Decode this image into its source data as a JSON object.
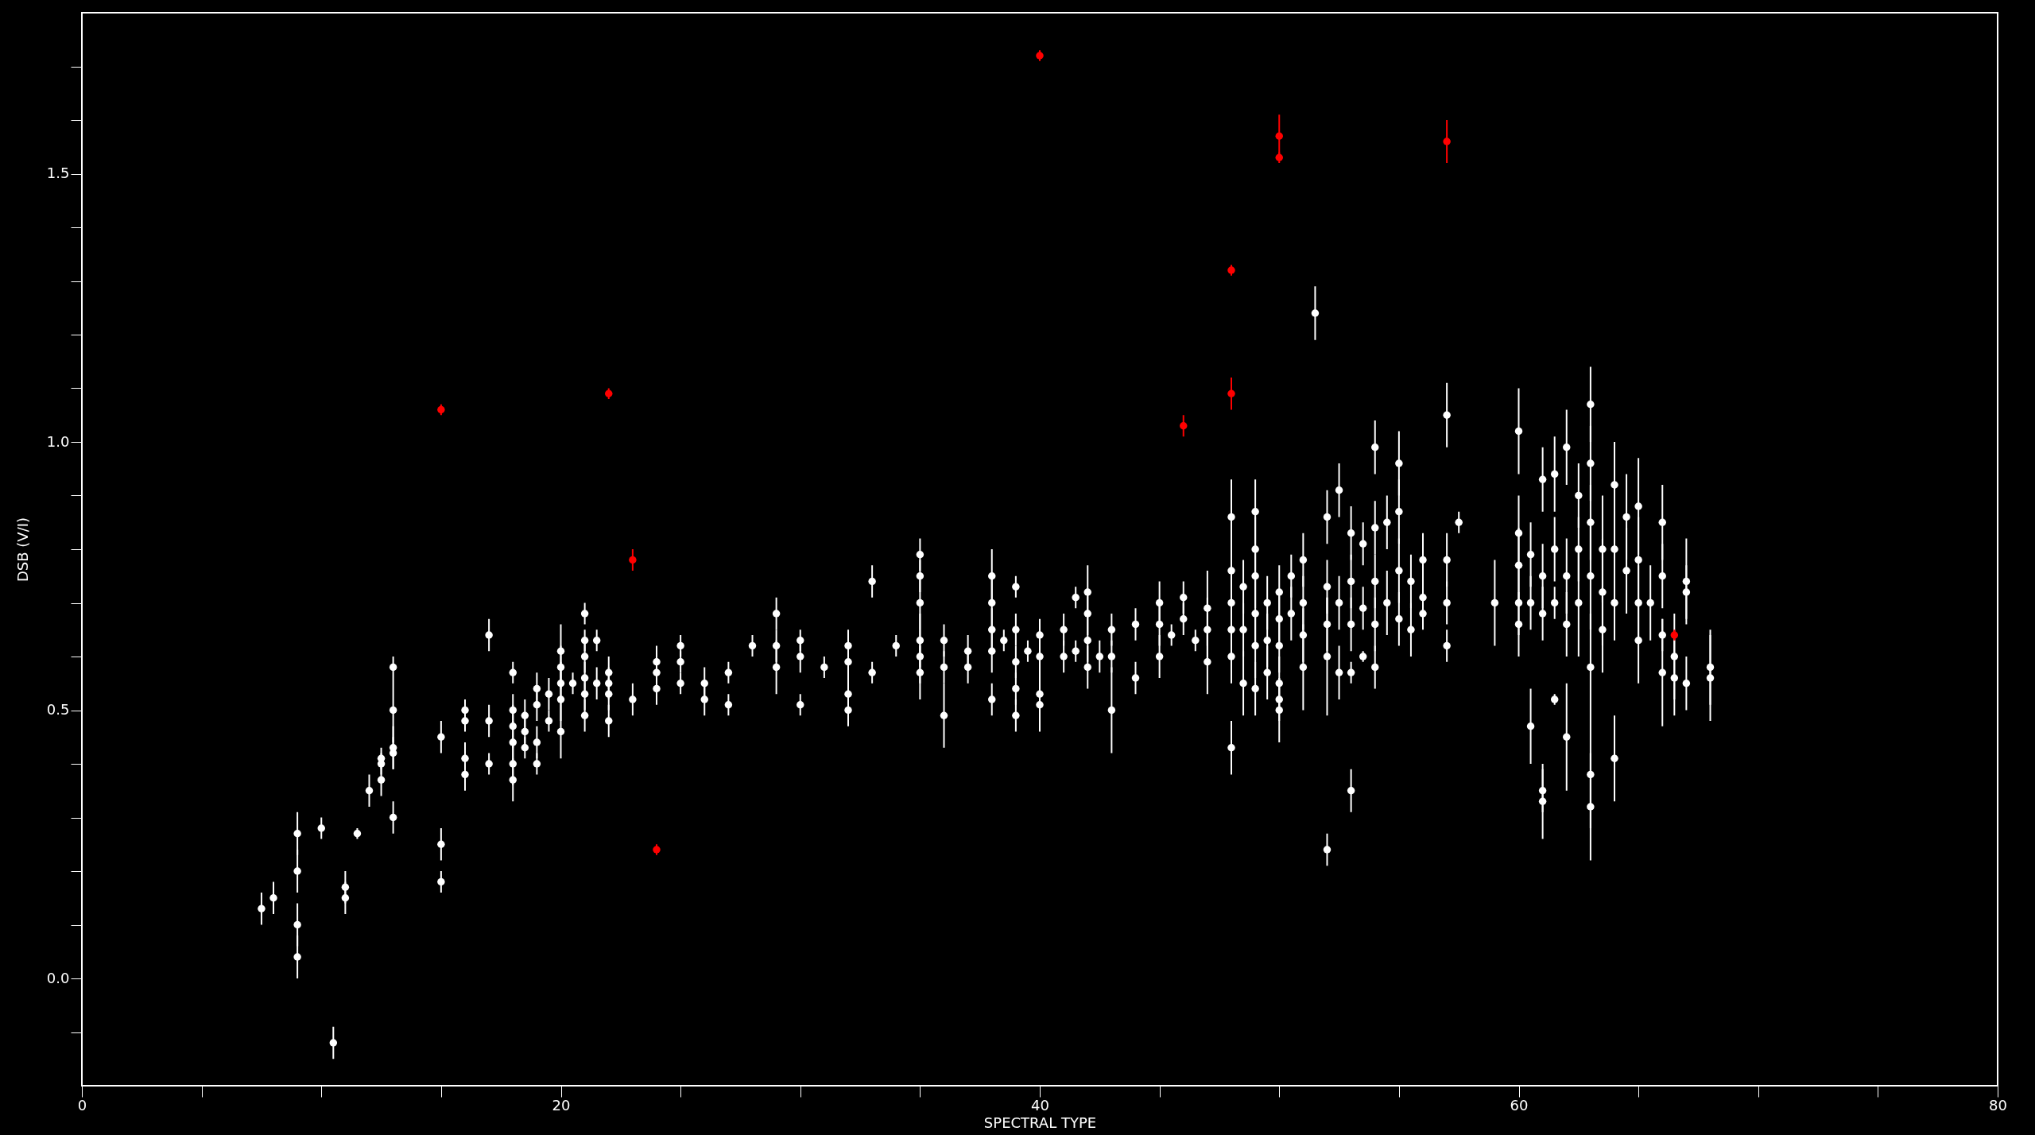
{
  "chart_data": {
    "type": "scatter",
    "xlabel": "SPECTRAL TYPE",
    "ylabel": "DSB (V/I)",
    "xlim": [
      0,
      80
    ],
    "ylim": [
      -0.2,
      1.8
    ],
    "xticks": [
      0,
      {
        "value": 5,
        "label": null
      },
      {
        "value": 10,
        "label": null
      },
      {
        "value": 15,
        "label": null
      },
      20,
      {
        "value": 25,
        "label": null
      },
      {
        "value": 30,
        "label": null
      },
      {
        "value": 35,
        "label": null
      },
      40,
      {
        "value": 45,
        "label": null
      },
      {
        "value": 50,
        "label": null
      },
      {
        "value": 55,
        "label": null
      },
      60,
      {
        "value": 65,
        "label": null
      },
      {
        "value": 70,
        "label": null
      },
      {
        "value": 75,
        "label": null
      },
      80
    ],
    "yticks": [
      {
        "value": -0.1,
        "label": null
      },
      {
        "value": 0,
        "label": "0.0"
      },
      {
        "value": 0.1,
        "label": null
      },
      {
        "value": 0.2,
        "label": null
      },
      {
        "value": 0.3,
        "label": null
      },
      {
        "value": 0.4,
        "label": null
      },
      {
        "value": 0.5,
        "label": "0.5"
      },
      {
        "value": 0.6,
        "label": null
      },
      {
        "value": 0.7,
        "label": null
      },
      {
        "value": 0.8,
        "label": null
      },
      {
        "value": 0.9,
        "label": null
      },
      {
        "value": 1,
        "label": "1.0"
      },
      {
        "value": 1.1,
        "label": null
      },
      {
        "value": 1.2,
        "label": null
      },
      {
        "value": 1.3,
        "label": null
      },
      {
        "value": 1.4,
        "label": null
      },
      {
        "value": 1.5,
        "label": "1.5"
      },
      {
        "value": 1.6,
        "label": null
      },
      {
        "value": 1.7,
        "label": null
      }
    ],
    "grid": false,
    "marker": "circle",
    "series": [
      {
        "color": "#ffffff",
        "x": [
          7.5,
          8,
          9,
          9,
          9,
          9,
          10,
          10.5,
          11,
          11,
          11.5,
          12,
          12.5,
          12.5,
          12.5,
          13,
          13,
          13,
          13,
          13,
          15,
          15,
          15,
          16,
          16,
          16,
          16,
          17,
          17,
          17,
          18,
          18,
          18,
          18,
          18,
          18,
          18.5,
          18.5,
          18.5,
          19,
          19,
          19,
          19,
          19.5,
          19.5,
          20,
          20,
          20,
          20,
          20,
          20.5,
          21,
          21,
          21,
          21,
          21,
          21,
          21.5,
          21.5,
          22,
          22,
          22,
          22,
          23,
          24,
          24,
          24,
          25,
          25,
          25,
          26,
          26,
          27,
          27,
          28,
          29,
          29,
          29,
          30,
          30,
          30,
          31,
          32,
          32,
          32,
          32,
          33,
          33,
          34,
          35,
          35,
          35,
          35,
          35,
          35,
          36,
          36,
          36,
          37,
          37,
          38,
          38,
          38,
          38,
          38,
          38.5,
          39,
          39,
          39,
          39,
          39,
          39.5,
          40,
          40,
          40,
          40,
          41,
          41,
          41.5,
          41.5,
          42,
          42,
          42,
          42,
          42.5,
          43,
          43,
          43,
          44,
          44,
          45,
          45,
          45,
          45.5,
          46,
          46,
          46.5,
          47,
          47,
          47,
          48,
          48,
          48,
          48,
          48,
          48,
          48.5,
          48.5,
          48.5,
          49,
          49,
          49,
          49,
          49,
          49,
          49.5,
          49.5,
          49.5,
          50,
          50,
          50,
          50,
          50,
          50,
          50.5,
          50.5,
          51,
          51,
          51,
          51,
          51.5,
          52,
          52,
          52,
          52,
          52,
          52.5,
          52.5,
          52.5,
          53,
          53,
          53,
          53,
          53,
          53.5,
          53.5,
          53.5,
          54,
          54,
          54,
          54,
          54,
          54.5,
          54.5,
          55,
          55,
          55,
          55,
          55.5,
          55.5,
          56,
          56,
          56,
          57,
          57,
          57,
          57,
          57.5,
          59,
          60,
          60,
          60,
          60,
          60,
          60.5,
          60.5,
          60.5,
          61,
          61,
          61,
          61,
          61,
          61.5,
          61.5,
          61.5,
          61.5,
          62,
          62,
          62,
          62,
          62.5,
          62.5,
          62.5,
          63,
          63,
          63,
          63,
          63,
          63,
          63,
          63.5,
          63.5,
          63.5,
          64,
          64,
          64,
          64,
          64.5,
          64.5,
          65,
          65,
          65,
          65,
          65.5,
          66,
          66,
          66,
          66,
          66.5,
          66.5,
          67,
          67,
          67,
          68,
          68
        ],
        "values": [
          0.13,
          0.15,
          0.27,
          0.2,
          0.1,
          0.04,
          0.28,
          -0.12,
          0.17,
          0.15,
          0.27,
          0.35,
          0.41,
          0.4,
          0.37,
          0.58,
          0.5,
          0.43,
          0.42,
          0.3,
          0.45,
          0.25,
          0.18,
          0.5,
          0.48,
          0.41,
          0.38,
          0.64,
          0.48,
          0.4,
          0.57,
          0.5,
          0.47,
          0.44,
          0.4,
          0.37,
          0.49,
          0.46,
          0.43,
          0.54,
          0.51,
          0.44,
          0.4,
          0.53,
          0.48,
          0.61,
          0.58,
          0.55,
          0.52,
          0.46,
          0.55,
          0.68,
          0.63,
          0.6,
          0.56,
          0.53,
          0.49,
          0.63,
          0.55,
          0.57,
          0.55,
          0.53,
          0.48,
          0.52,
          0.59,
          0.57,
          0.54,
          0.62,
          0.59,
          0.55,
          0.55,
          0.52,
          0.57,
          0.51,
          0.62,
          0.68,
          0.62,
          0.58,
          0.63,
          0.6,
          0.51,
          0.58,
          0.62,
          0.59,
          0.53,
          0.5,
          0.74,
          0.57,
          0.62,
          0.79,
          0.75,
          0.7,
          0.63,
          0.6,
          0.57,
          0.63,
          0.58,
          0.49,
          0.61,
          0.58,
          0.75,
          0.7,
          0.65,
          0.61,
          0.52,
          0.63,
          0.73,
          0.65,
          0.59,
          0.54,
          0.49,
          0.61,
          0.64,
          0.6,
          0.53,
          0.51,
          0.65,
          0.6,
          0.71,
          0.61,
          0.72,
          0.68,
          0.63,
          0.58,
          0.6,
          0.65,
          0.6,
          0.5,
          0.66,
          0.56,
          0.7,
          0.66,
          0.6,
          0.64,
          0.71,
          0.67,
          0.63,
          0.69,
          0.65,
          0.59,
          0.86,
          0.76,
          0.7,
          0.65,
          0.6,
          0.43,
          0.73,
          0.65,
          0.55,
          0.87,
          0.8,
          0.75,
          0.68,
          0.62,
          0.54,
          0.7,
          0.63,
          0.57,
          0.72,
          0.67,
          0.62,
          0.55,
          0.5,
          0.52,
          0.75,
          0.68,
          0.78,
          0.7,
          0.64,
          0.58,
          1.24,
          0.86,
          0.73,
          0.66,
          0.6,
          0.24,
          0.91,
          0.7,
          0.57,
          0.83,
          0.74,
          0.66,
          0.57,
          0.35,
          0.81,
          0.69,
          0.6,
          0.99,
          0.84,
          0.74,
          0.66,
          0.58,
          0.85,
          0.7,
          0.96,
          0.87,
          0.76,
          0.67,
          0.74,
          0.65,
          0.78,
          0.71,
          0.68,
          1.05,
          0.78,
          0.7,
          0.62,
          0.85,
          0.7,
          1.02,
          0.83,
          0.77,
          0.7,
          0.66,
          0.79,
          0.7,
          0.47,
          0.93,
          0.75,
          0.68,
          0.35,
          0.33,
          0.94,
          0.8,
          0.7,
          0.52,
          0.99,
          0.75,
          0.66,
          0.45,
          0.9,
          0.8,
          0.7,
          1.07,
          0.96,
          0.85,
          0.75,
          0.58,
          0.38,
          0.32,
          0.8,
          0.72,
          0.65,
          0.92,
          0.8,
          0.7,
          0.41,
          0.86,
          0.76,
          0.88,
          0.78,
          0.7,
          0.63,
          0.7,
          0.85,
          0.75,
          0.64,
          0.57,
          0.6,
          0.56,
          0.74,
          0.72,
          0.55,
          0.58,
          0.56
        ],
        "errors": [
          0.03,
          0.03,
          0.04,
          0.04,
          0.04,
          0.04,
          0.02,
          0.03,
          0.03,
          0.03,
          0.01,
          0.03,
          0.02,
          0.02,
          0.03,
          0.02,
          0.06,
          0.04,
          0.03,
          0.03,
          0.03,
          0.03,
          0.02,
          0.02,
          0.02,
          0.03,
          0.03,
          0.03,
          0.03,
          0.02,
          0.02,
          0.03,
          0.04,
          0.04,
          0.04,
          0.04,
          0.03,
          0.03,
          0.02,
          0.03,
          0.03,
          0.03,
          0.02,
          0.03,
          0.02,
          0.05,
          0.04,
          0.04,
          0.04,
          0.05,
          0.02,
          0.02,
          0.02,
          0.03,
          0.03,
          0.03,
          0.03,
          0.02,
          0.03,
          0.03,
          0.03,
          0.03,
          0.03,
          0.03,
          0.03,
          0.03,
          0.03,
          0.02,
          0.02,
          0.02,
          0.03,
          0.03,
          0.02,
          0.02,
          0.02,
          0.03,
          0.03,
          0.05,
          0.02,
          0.03,
          0.02,
          0.02,
          0.03,
          0.03,
          0.03,
          0.03,
          0.03,
          0.02,
          0.02,
          0.03,
          0.03,
          0.05,
          0.05,
          0.05,
          0.05,
          0.03,
          0.03,
          0.06,
          0.03,
          0.03,
          0.05,
          0.05,
          0.04,
          0.04,
          0.03,
          0.02,
          0.02,
          0.03,
          0.03,
          0.03,
          0.03,
          0.02,
          0.03,
          0.04,
          0.04,
          0.05,
          0.03,
          0.03,
          0.02,
          0.02,
          0.05,
          0.04,
          0.04,
          0.04,
          0.03,
          0.03,
          0.03,
          0.08,
          0.03,
          0.03,
          0.04,
          0.04,
          0.04,
          0.02,
          0.03,
          0.03,
          0.02,
          0.07,
          0.06,
          0.06,
          0.07,
          0.07,
          0.06,
          0.06,
          0.05,
          0.05,
          0.05,
          0.05,
          0.06,
          0.06,
          0.06,
          0.06,
          0.06,
          0.06,
          0.05,
          0.05,
          0.05,
          0.05,
          0.05,
          0.05,
          0.05,
          0.05,
          0.06,
          0.04,
          0.04,
          0.05,
          0.05,
          0.05,
          0.05,
          0.08,
          0.05,
          0.05,
          0.05,
          0.05,
          0.11,
          0.03,
          0.05,
          0.05,
          0.05,
          0.05,
          0.05,
          0.05,
          0.02,
          0.04,
          0.04,
          0.04,
          0.01,
          0.05,
          0.05,
          0.05,
          0.05,
          0.04,
          0.05,
          0.06,
          0.06,
          0.06,
          0.06,
          0.05,
          0.05,
          0.05,
          0.05,
          0.05,
          0.03,
          0.06,
          0.05,
          0.04,
          0.03,
          0.02,
          0.08,
          0.08,
          0.07,
          0.07,
          0.06,
          0.06,
          0.06,
          0.05,
          0.07,
          0.06,
          0.06,
          0.05,
          0.04,
          0.07,
          0.07,
          0.06,
          0.03,
          0.01,
          0.07,
          0.07,
          0.06,
          0.1,
          0.06,
          0.06,
          0.1,
          0.07,
          0.07,
          0.07,
          0.1,
          0.1,
          0.1,
          0.1,
          0.1,
          0.1,
          0.08,
          0.08,
          0.07,
          0.07,
          0.08,
          0.08,
          0.08,
          0.09,
          0.08,
          0.07,
          0.08,
          0.07,
          0.07,
          0.06,
          0.03,
          0.1,
          0.08,
          0.07,
          0.08,
          0.05,
          0.05,
          0.07,
          0.08
        ]
      },
      {
        "color": "#ff0000",
        "x": [
          15,
          22,
          23,
          24,
          40,
          46,
          48,
          48,
          50,
          50,
          57,
          66.5
        ],
        "values": [
          1.06,
          1.09,
          0.78,
          0.24,
          1.72,
          1.03,
          1.32,
          1.09,
          1.57,
          1.53,
          1.56,
          0.64
        ],
        "errors": [
          0.01,
          0.01,
          0.02,
          0.01,
          0.01,
          0.02,
          0.01,
          0.03,
          0.04,
          0.01,
          0.04,
          0.01
        ]
      }
    ]
  }
}
